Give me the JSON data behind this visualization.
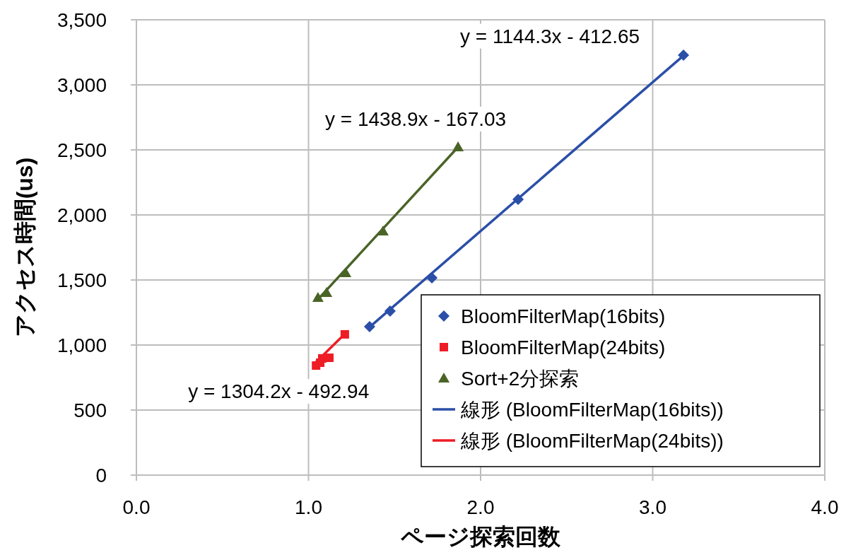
{
  "chart_data": {
    "type": "scatter",
    "xlabel": "ページ探索回数",
    "ylabel": "アクセス時間(us)",
    "xlim": [
      0,
      4
    ],
    "ylim": [
      0,
      3500
    ],
    "xticks": [
      {
        "value": 0,
        "label": "0.0"
      },
      {
        "value": 1,
        "label": "1.0"
      },
      {
        "value": 2,
        "label": "2.0"
      },
      {
        "value": 3,
        "label": "3.0"
      },
      {
        "value": 4,
        "label": "4.0"
      }
    ],
    "yticks": [
      {
        "value": 0,
        "label": "0"
      },
      {
        "value": 500,
        "label": "500"
      },
      {
        "value": 1000,
        "label": "1,000"
      },
      {
        "value": 1500,
        "label": "1,500"
      },
      {
        "value": 2000,
        "label": "2,000"
      },
      {
        "value": 2500,
        "label": "2,500"
      },
      {
        "value": 3000,
        "label": "3,000"
      },
      {
        "value": 3500,
        "label": "3,500"
      }
    ],
    "grid": true,
    "legend": "bottom right",
    "series": [
      {
        "name": "BloomFilterMap(16bits)",
        "marker": "diamond",
        "color": "#2b4fa8",
        "x": [
          1.355,
          1.474,
          1.717,
          2.218,
          3.179
        ],
        "values": [
          1141,
          1261,
          1516,
          2120,
          3228
        ]
      },
      {
        "name": "BloomFilterMap(24bits)",
        "marker": "square",
        "color": "#ee1c25",
        "x": [
          1.044,
          1.068,
          1.08,
          1.121,
          1.211
        ],
        "values": [
          842,
          864,
          897,
          902,
          1082
        ]
      },
      {
        "name": "Sort+2分探索",
        "marker": "triangle",
        "color": "#4a6427",
        "x": [
          1.055,
          1.105,
          1.216,
          1.433,
          1.869
        ],
        "values": [
          1364,
          1402,
          1554,
          1875,
          2522
        ]
      },
      {
        "name": "線形 (BloomFilterMap(16bits))",
        "type": "line",
        "color": "#2b4fa8",
        "x": [
          1.355,
          3.179
        ],
        "values": [
          1138,
          3225
        ]
      },
      {
        "name": "線形 (BloomFilterMap(24bits))",
        "type": "line",
        "color": "#ee1c25",
        "x": [
          1.044,
          1.211
        ],
        "values": [
          869,
          1086
        ]
      },
      {
        "type": "line",
        "color": "#4a6427",
        "x": [
          1.055,
          1.869
        ],
        "values": [
          1351,
          2522
        ]
      }
    ],
    "annotations": [
      "y = 1144.3x - 412.65",
      "y = 1304.2x - 492.94",
      "y = 1438.9x - 167.03"
    ]
  }
}
